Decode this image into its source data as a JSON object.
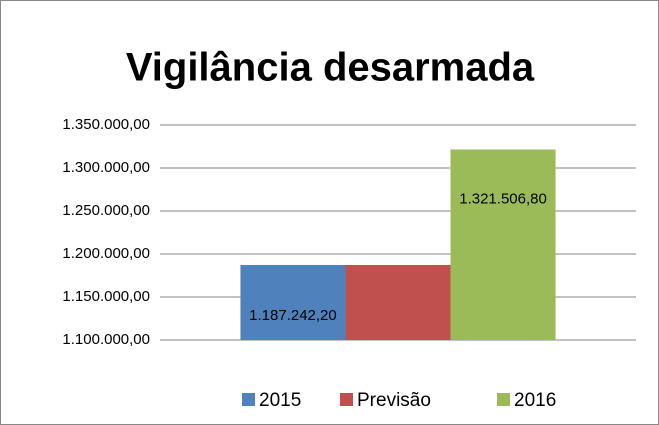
{
  "chart_data": {
    "type": "bar",
    "title": "Vigilância desarmada",
    "categories": [
      null
    ],
    "series": [
      {
        "name": "2015",
        "color": "#4f81bd",
        "values": [
          1187242.2
        ],
        "value_labels": [
          "1.187.242,20"
        ]
      },
      {
        "name": "Previsão",
        "color": "#c0504d",
        "values": [
          1187242.2
        ]
      },
      {
        "name": "2016",
        "color": "#9bbb59",
        "values": [
          1321506.8
        ],
        "value_labels": [
          "1.321.506,80"
        ]
      }
    ],
    "ylim": [
      1100000,
      1350000
    ],
    "yticks": [
      {
        "value": 1100000,
        "label": "1.100.000,00"
      },
      {
        "value": 1150000,
        "label": "1.150.000,00"
      },
      {
        "value": 1200000,
        "label": "1.200.000,00"
      },
      {
        "value": 1250000,
        "label": "1.250.000,00"
      },
      {
        "value": 1300000,
        "label": "1.300.000,00"
      },
      {
        "value": 1350000,
        "label": "1.350.000,00"
      }
    ],
    "grid": true,
    "legend": "bottom"
  }
}
